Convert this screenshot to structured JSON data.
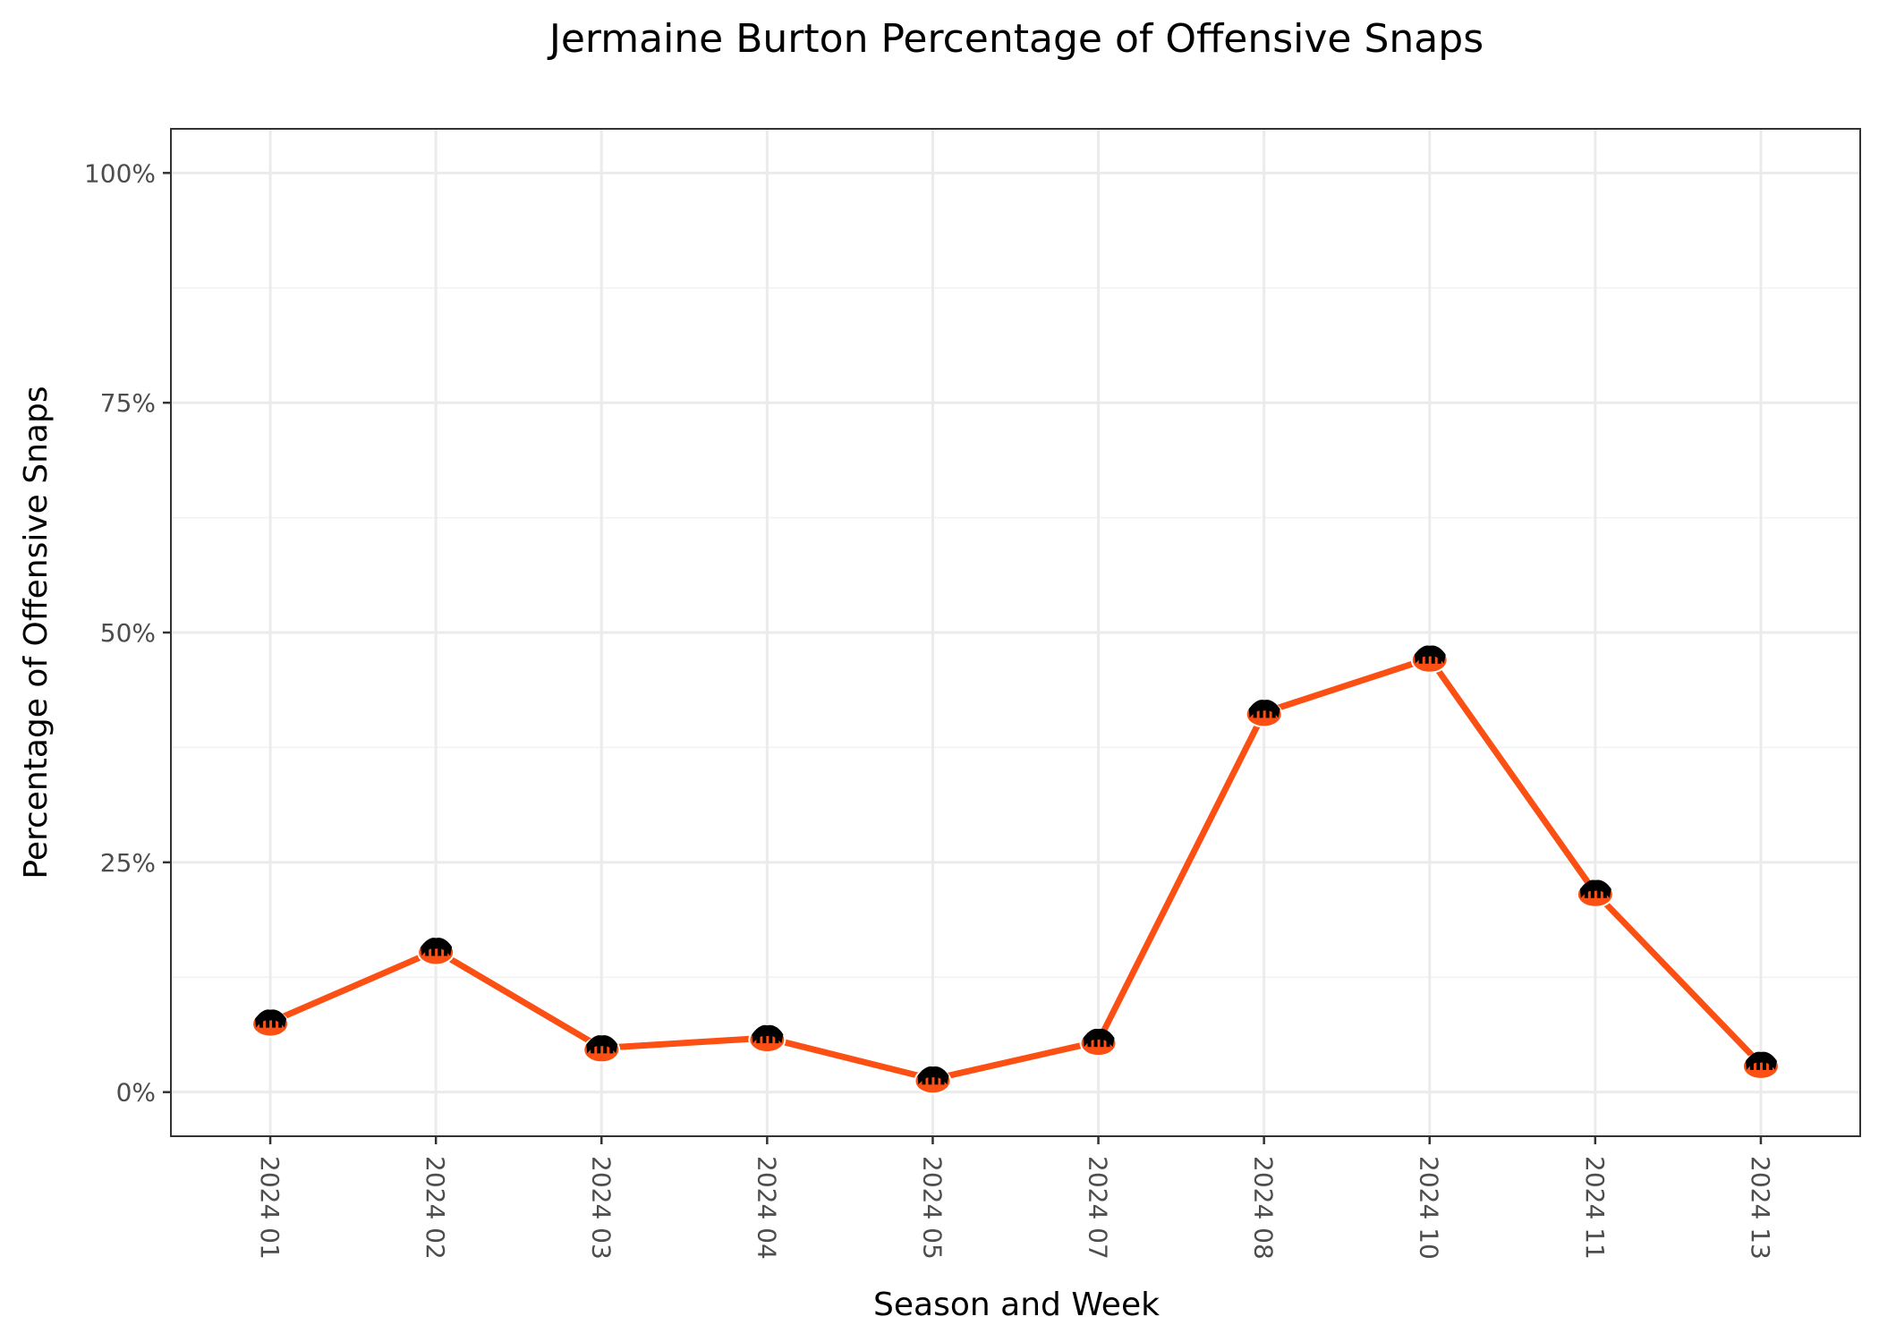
{
  "chart_data": {
    "type": "line",
    "title": "Jermaine Burton Percentage of Offensive Snaps",
    "xlabel": "Season and Week",
    "ylabel": "Percentage of Offensive Snaps",
    "categories": [
      "2024 01",
      "2024 02",
      "2024 03",
      "2024 04",
      "2024 05",
      "2024 07",
      "2024 08",
      "2024 10",
      "2024 11",
      "2024 13"
    ],
    "series": [
      {
        "name": "Jermaine Burton",
        "values": [
          7.6,
          15.4,
          4.8,
          5.9,
          1.4,
          5.5,
          41.3,
          47.2,
          21.7,
          3.0
        ]
      }
    ],
    "ylim": [
      -4.8,
      104.8
    ],
    "yticks": [
      0,
      25,
      50,
      75,
      100
    ],
    "ytick_labels": [
      "0%",
      "25%",
      "50%",
      "75%",
      "100%"
    ],
    "marker": "team-logo",
    "colors": {
      "line": "#fb4f14",
      "marker_dark": "#000000"
    },
    "grid": true,
    "theme": "bw"
  }
}
